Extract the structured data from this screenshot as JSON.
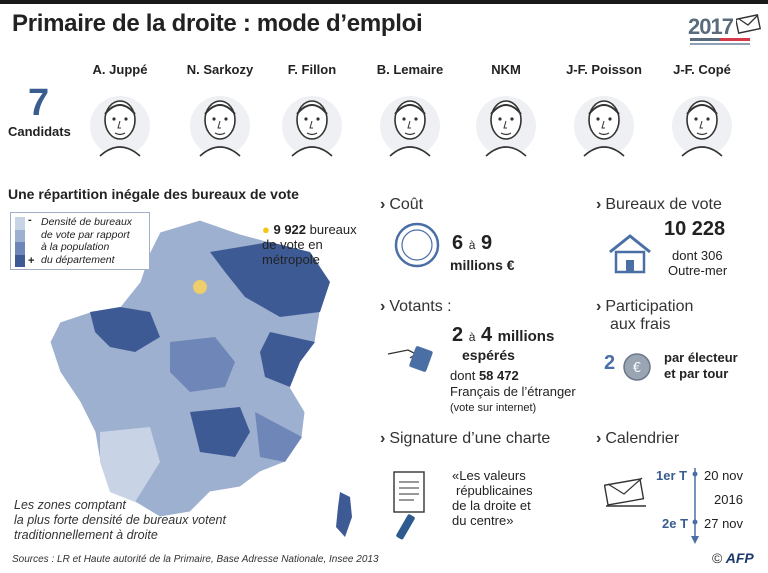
{
  "header": {
    "title": "Primaire de la droite : mode d’emploi",
    "logo_year": "2017"
  },
  "candidates": {
    "count": "7",
    "label": "Candidats",
    "names": [
      "A. Juppé",
      "N. Sarkozy",
      "F. Fillon",
      "B. Lemaire",
      "NKM",
      "J-F. Poisson",
      "J-F. Copé"
    ]
  },
  "map": {
    "title": "Une répartition inégale des bureaux de vote",
    "legend_minus": "-",
    "legend_plus": "+",
    "legend_lines": [
      "Densité de bureaux",
      "de vote par rapport",
      "à la population",
      "du département"
    ],
    "offices_number": "9 922",
    "offices_text_1": "bureaux",
    "offices_text_2": "de vote en",
    "offices_text_3": "métropole",
    "zones_note": [
      "Les zones comptant",
      "la plus forte densité de bureaux votent",
      "traditionnellement à droite"
    ],
    "colors": [
      "#c9d3e6",
      "#9eb0d0",
      "#6f87b8",
      "#3d5a94"
    ]
  },
  "cout": {
    "title": "Coût",
    "range_from": "6",
    "range_sep": "à",
    "range_to": "9",
    "unit": "millions €"
  },
  "bureaux": {
    "title": "Bureaux de vote",
    "number": "10 228",
    "line1": "dont 306",
    "line2": "Outre-mer"
  },
  "votants": {
    "title": "Votants :",
    "from": "2",
    "sep": "à",
    "to": "4",
    "unit": "millions",
    "expected": "espérés",
    "dont_label": "dont",
    "dont_number": "58 472",
    "abroad": "Français de l’étranger",
    "internet": "(vote sur internet)"
  },
  "participation": {
    "title_1": "Participation",
    "title_2": "aux frais",
    "amount": "2",
    "text_1": "par électeur",
    "text_2": "et par tour"
  },
  "charte": {
    "title": "Signature d’une charte",
    "quote_lines": [
      "«Les valeurs",
      "républicaines",
      "de la droite et",
      "du centre»"
    ]
  },
  "calendrier": {
    "title": "Calendrier",
    "round1": "1er T",
    "date1": "20 nov",
    "year": "2016",
    "round2": "2e T",
    "date2": "27 nov"
  },
  "footer": {
    "sources": "Sources : LR et Haute autorité de la Primaire, Base Adresse Nationale, Insee 2013",
    "copyright": "©",
    "agency": "AFP"
  }
}
